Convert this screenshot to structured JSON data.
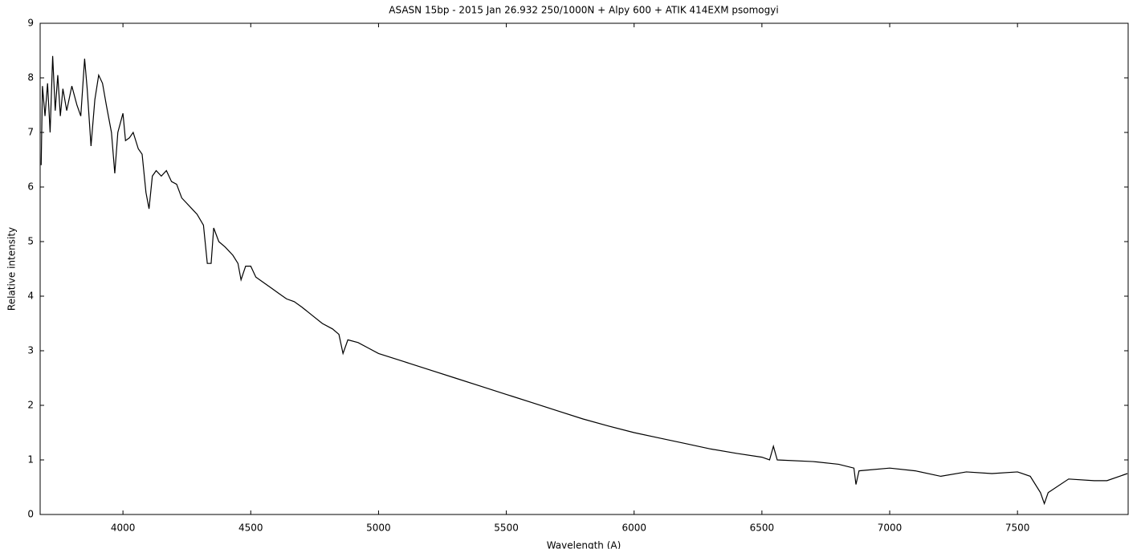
{
  "chart_data": {
    "type": "line",
    "title": "ASASN 15bp - 2015 Jan 26.932 250/1000N + Alpy 600 + ATIK 414EXM psomogyi",
    "x_label": "Wavelength (A)",
    "y_label": "Relative intensity",
    "x": [
      3680,
      3685,
      3695,
      3705,
      3715,
      3725,
      3735,
      3745,
      3755,
      3765,
      3780,
      3800,
      3820,
      3835,
      3850,
      3860,
      3875,
      3890,
      3905,
      3920,
      3935,
      3955,
      3968,
      3980,
      4000,
      4010,
      4025,
      4040,
      4060,
      4075,
      4090,
      4102,
      4115,
      4130,
      4150,
      4170,
      4190,
      4210,
      4230,
      4250,
      4270,
      4290,
      4315,
      4330,
      4345,
      4355,
      4375,
      4400,
      4430,
      4450,
      4462,
      4480,
      4500,
      4520,
      4550,
      4580,
      4610,
      4640,
      4670,
      4700,
      4740,
      4780,
      4820,
      4845,
      4861,
      4880,
      4920,
      4960,
      5000,
      5100,
      5200,
      5300,
      5400,
      5500,
      5600,
      5700,
      5800,
      5900,
      6000,
      6100,
      6200,
      6300,
      6400,
      6500,
      6530,
      6545,
      6560,
      6700,
      6800,
      6860,
      6868,
      6880,
      7000,
      7100,
      7200,
      7300,
      7400,
      7500,
      7550,
      7590,
      7605,
      7620,
      7700,
      7800,
      7850,
      7930
    ],
    "series": [
      {
        "name": "spectrum",
        "color": "#000000",
        "values": [
          6.4,
          7.85,
          7.3,
          7.9,
          7.0,
          8.4,
          7.4,
          8.05,
          7.3,
          7.8,
          7.4,
          7.85,
          7.5,
          7.3,
          8.35,
          7.8,
          6.75,
          7.6,
          8.05,
          7.9,
          7.5,
          7.0,
          6.25,
          7.0,
          7.35,
          6.85,
          6.9,
          7.0,
          6.7,
          6.6,
          5.9,
          5.6,
          6.2,
          6.3,
          6.2,
          6.3,
          6.1,
          6.05,
          5.8,
          5.7,
          5.6,
          5.5,
          5.3,
          4.6,
          4.6,
          5.25,
          5.0,
          4.9,
          4.75,
          4.6,
          4.3,
          4.55,
          4.55,
          4.35,
          4.25,
          4.15,
          4.05,
          3.95,
          3.9,
          3.8,
          3.65,
          3.5,
          3.4,
          3.3,
          2.95,
          3.2,
          3.15,
          3.05,
          2.95,
          2.8,
          2.65,
          2.5,
          2.35,
          2.2,
          2.05,
          1.9,
          1.75,
          1.62,
          1.5,
          1.4,
          1.3,
          1.2,
          1.12,
          1.05,
          1.0,
          1.25,
          1.0,
          0.97,
          0.92,
          0.85,
          0.55,
          0.8,
          0.85,
          0.8,
          0.7,
          0.78,
          0.75,
          0.78,
          0.7,
          0.4,
          0.2,
          0.4,
          0.65,
          0.62,
          0.62,
          0.75
        ]
      }
    ],
    "xlim": [
      3676,
      7933
    ],
    "ylim": [
      0,
      9
    ],
    "xticks": [
      4000,
      4500,
      5000,
      5500,
      6000,
      6500,
      7000,
      7500
    ],
    "yticks": [
      0,
      1,
      2,
      3,
      4,
      5,
      6,
      7,
      8,
      9
    ]
  }
}
